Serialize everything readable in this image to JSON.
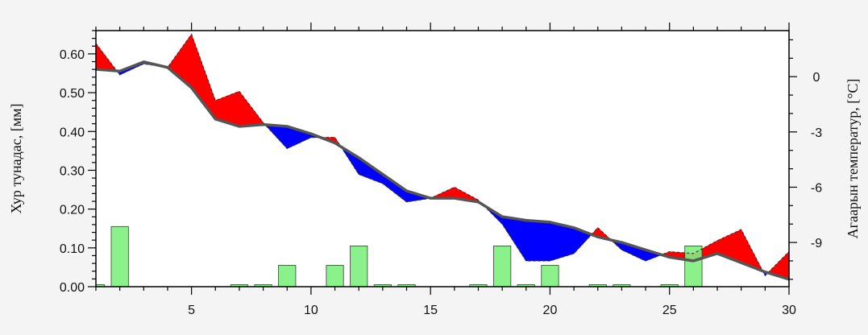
{
  "chart_data": {
    "type": "bar+line",
    "x_ticks": [
      5,
      10,
      15,
      20,
      25,
      30
    ],
    "xlim": [
      1,
      30
    ],
    "left_axis": {
      "label": "Хур тунадас, [мм]",
      "ylim": [
        0.0,
        0.66
      ],
      "ticks": [
        0.0,
        0.1,
        0.2,
        0.3,
        0.4,
        0.5,
        0.6
      ],
      "tick_labels": [
        "0.00",
        "0.10",
        "0.20",
        "0.30",
        "0.40",
        "0.50",
        "0.60"
      ]
    },
    "right_axis": {
      "label": "Агаарын температур, [°C]",
      "ylim": [
        -11.4,
        2.5
      ],
      "ticks": [
        0,
        -3,
        -6,
        -9
      ],
      "tick_labels": [
        "0",
        "-3",
        "-6",
        "-9"
      ]
    },
    "precipitation": {
      "x": [
        1,
        2,
        3,
        4,
        5,
        6,
        7,
        8,
        9,
        10,
        11,
        12,
        13,
        14,
        15,
        16,
        17,
        18,
        19,
        20,
        21,
        22,
        23,
        24,
        25,
        26,
        27,
        28,
        29,
        30
      ],
      "values": [
        0.005,
        0.155,
        0,
        0,
        0,
        0,
        0.005,
        0.005,
        0.055,
        0,
        0.055,
        0.105,
        0.005,
        0.005,
        0,
        0,
        0.005,
        0.105,
        0.005,
        0.055,
        0,
        0.005,
        0.005,
        0,
        0.005,
        0.105,
        0,
        0,
        0,
        0
      ]
    },
    "temperature": {
      "x": [
        1,
        2,
        3,
        4,
        5,
        6,
        7,
        8,
        9,
        10,
        11,
        12,
        13,
        14,
        15,
        16,
        17,
        18,
        19,
        20,
        21,
        22,
        23,
        24,
        25,
        26,
        27,
        28,
        29,
        30
      ],
      "normal": [
        0.4,
        0.3,
        0.8,
        0.5,
        -0.6,
        -2.3,
        -2.7,
        -2.6,
        -2.7,
        -3.1,
        -3.6,
        -4.4,
        -5.3,
        -6.2,
        -6.6,
        -6.6,
        -6.8,
        -7.6,
        -7.8,
        -7.9,
        -8.2,
        -8.7,
        -9.0,
        -9.4,
        -9.8,
        -10.0,
        -9.6,
        -10.1,
        -10.6,
        -11.0
      ],
      "actual": [
        1.8,
        0.1,
        0.7,
        0.5,
        2.3,
        -1.3,
        -0.8,
        -2.5,
        -3.9,
        -3.3,
        -3.3,
        -5.3,
        -5.8,
        -6.8,
        -6.6,
        -6.0,
        -6.7,
        -8.0,
        -10.0,
        -10.0,
        -9.6,
        -8.2,
        -9.4,
        -10.0,
        -9.5,
        -9.6,
        -8.9,
        -8.3,
        -10.8,
        -9.5
      ]
    },
    "colors": {
      "bar_fill": "#7ef07e",
      "bar_stroke": "#3a3a3a",
      "warm": "#ff0000",
      "cold": "#0000ff",
      "normal_line": "#555555",
      "plot_bg": "#ffffff"
    }
  }
}
